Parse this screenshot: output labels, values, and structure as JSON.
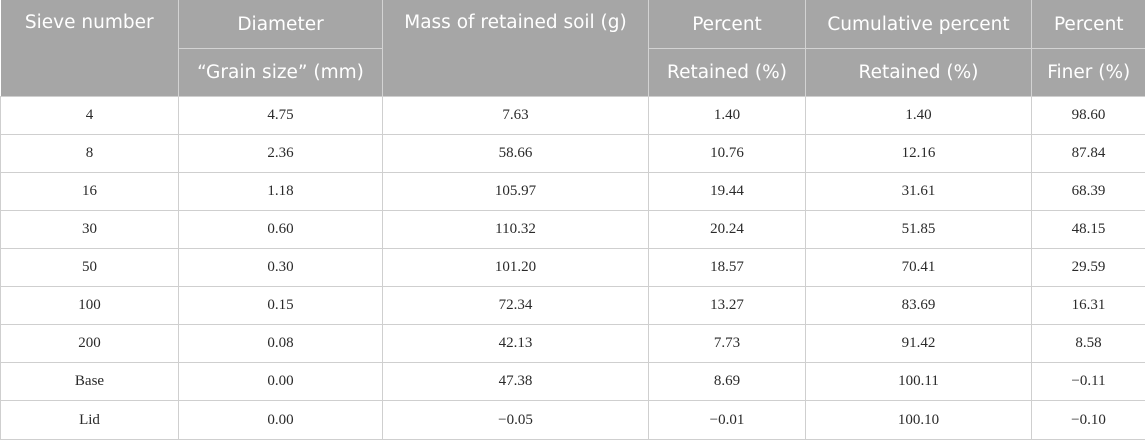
{
  "headers": {
    "sieve_number": "Sieve number",
    "diameter": "Diameter",
    "grain_size": "“Grain size” (mm)",
    "mass_retained": "Mass of retained soil (g)",
    "percent": "Percent",
    "retained_pct": "Retained (%)",
    "cumulative_percent": "Cumulative percent",
    "cumulative_retained_pct": "Retained (%)",
    "percent_finer_top": "Percent",
    "finer_pct": "Finer (%)"
  },
  "rows": [
    [
      "4",
      "4.75",
      "7.63",
      "1.40",
      "1.40",
      "98.60"
    ],
    [
      "8",
      "2.36",
      "58.66",
      "10.76",
      "12.16",
      "87.84"
    ],
    [
      "16",
      "1.18",
      "105.97",
      "19.44",
      "31.61",
      "68.39"
    ],
    [
      "30",
      "0.60",
      "110.32",
      "20.24",
      "51.85",
      "48.15"
    ],
    [
      "50",
      "0.30",
      "101.20",
      "18.57",
      "70.41",
      "29.59"
    ],
    [
      "100",
      "0.15",
      "72.34",
      "13.27",
      "83.69",
      "16.31"
    ],
    [
      "200",
      "0.08",
      "42.13",
      "7.73",
      "91.42",
      "8.58"
    ],
    [
      "Base",
      "0.00",
      "47.38",
      "8.69",
      "100.11",
      "−0.11"
    ],
    [
      "Lid",
      "0.00",
      "−0.05",
      "−0.01",
      "100.10",
      "−0.10"
    ]
  ]
}
